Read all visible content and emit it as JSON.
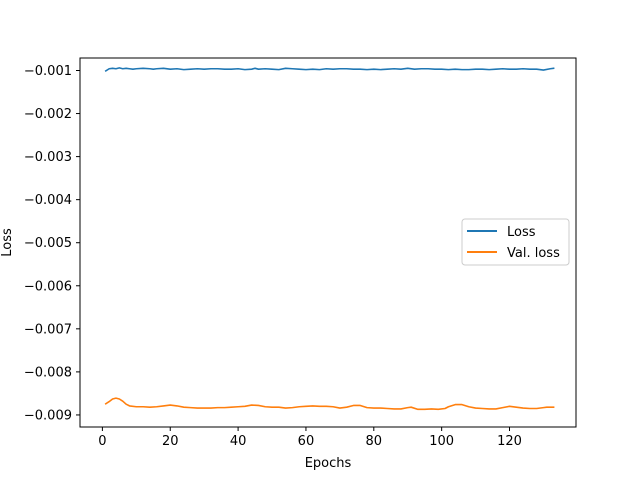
{
  "chart_data": {
    "type": "line",
    "xlabel": "Epochs",
    "ylabel": "Loss",
    "xlim": [
      -6.6,
      139.6
    ],
    "ylim": [
      -0.00928,
      -0.00071
    ],
    "xticks": [
      0,
      20,
      40,
      60,
      80,
      100,
      120
    ],
    "yticks": [
      -0.009,
      -0.008,
      -0.007,
      -0.006,
      -0.005,
      -0.004,
      -0.003,
      -0.002,
      -0.001
    ],
    "ytick_labels": [
      "−0.009",
      "−0.008",
      "−0.007",
      "−0.006",
      "−0.005",
      "−0.004",
      "−0.003",
      "−0.002",
      "−0.001"
    ],
    "grid": false,
    "legend_position": "center-right",
    "series": [
      {
        "name": "Loss",
        "color": "#1f77b4",
        "points": [
          [
            1,
            -0.00101
          ],
          [
            2,
            -0.00096
          ],
          [
            3,
            -0.00095
          ],
          [
            4,
            -0.00096
          ],
          [
            5,
            -0.00094
          ],
          [
            6,
            -0.00096
          ],
          [
            7,
            -0.00095
          ],
          [
            8,
            -0.00096
          ],
          [
            9,
            -0.00097
          ],
          [
            10,
            -0.00096
          ],
          [
            12,
            -0.00095
          ],
          [
            14,
            -0.00096
          ],
          [
            15,
            -0.00097
          ],
          [
            16,
            -0.00096
          ],
          [
            18,
            -0.00095
          ],
          [
            20,
            -0.00097
          ],
          [
            22,
            -0.00096
          ],
          [
            24,
            -0.00098
          ],
          [
            26,
            -0.00097
          ],
          [
            28,
            -0.00096
          ],
          [
            30,
            -0.00097
          ],
          [
            32,
            -0.00096
          ],
          [
            34,
            -0.00096
          ],
          [
            36,
            -0.00097
          ],
          [
            38,
            -0.00097
          ],
          [
            40,
            -0.00096
          ],
          [
            42,
            -0.00098
          ],
          [
            44,
            -0.00097
          ],
          [
            45,
            -0.00095
          ],
          [
            46,
            -0.00097
          ],
          [
            48,
            -0.00096
          ],
          [
            50,
            -0.00097
          ],
          [
            52,
            -0.00098
          ],
          [
            54,
            -0.00095
          ],
          [
            56,
            -0.00096
          ],
          [
            58,
            -0.00097
          ],
          [
            60,
            -0.00098
          ],
          [
            62,
            -0.00097
          ],
          [
            64,
            -0.00098
          ],
          [
            66,
            -0.00096
          ],
          [
            68,
            -0.00097
          ],
          [
            70,
            -0.00096
          ],
          [
            72,
            -0.00096
          ],
          [
            74,
            -0.00097
          ],
          [
            76,
            -0.00097
          ],
          [
            78,
            -0.00098
          ],
          [
            80,
            -0.00097
          ],
          [
            82,
            -0.00098
          ],
          [
            84,
            -0.00097
          ],
          [
            86,
            -0.00096
          ],
          [
            88,
            -0.00097
          ],
          [
            90,
            -0.00095
          ],
          [
            92,
            -0.00097
          ],
          [
            94,
            -0.00096
          ],
          [
            96,
            -0.00096
          ],
          [
            98,
            -0.00097
          ],
          [
            100,
            -0.00097
          ],
          [
            102,
            -0.00098
          ],
          [
            104,
            -0.00097
          ],
          [
            106,
            -0.00098
          ],
          [
            108,
            -0.00098
          ],
          [
            110,
            -0.00097
          ],
          [
            112,
            -0.00097
          ],
          [
            114,
            -0.00098
          ],
          [
            116,
            -0.00097
          ],
          [
            118,
            -0.00096
          ],
          [
            120,
            -0.00097
          ],
          [
            122,
            -0.00097
          ],
          [
            124,
            -0.00096
          ],
          [
            126,
            -0.00097
          ],
          [
            128,
            -0.00097
          ],
          [
            130,
            -0.00099
          ],
          [
            132,
            -0.00096
          ],
          [
            133,
            -0.00095
          ]
        ]
      },
      {
        "name": "Val. loss",
        "color": "#ff7f0e",
        "points": [
          [
            1,
            -0.00874
          ],
          [
            2,
            -0.00869
          ],
          [
            3,
            -0.00863
          ],
          [
            4,
            -0.00861
          ],
          [
            5,
            -0.00863
          ],
          [
            6,
            -0.00868
          ],
          [
            7,
            -0.00875
          ],
          [
            8,
            -0.00879
          ],
          [
            10,
            -0.00881
          ],
          [
            12,
            -0.00881
          ],
          [
            14,
            -0.00882
          ],
          [
            16,
            -0.00881
          ],
          [
            18,
            -0.00879
          ],
          [
            20,
            -0.00877
          ],
          [
            22,
            -0.00879
          ],
          [
            24,
            -0.00882
          ],
          [
            26,
            -0.00883
          ],
          [
            28,
            -0.00884
          ],
          [
            30,
            -0.00884
          ],
          [
            32,
            -0.00884
          ],
          [
            34,
            -0.00883
          ],
          [
            36,
            -0.00883
          ],
          [
            38,
            -0.00882
          ],
          [
            40,
            -0.00881
          ],
          [
            42,
            -0.0088
          ],
          [
            44,
            -0.00877
          ],
          [
            46,
            -0.00878
          ],
          [
            48,
            -0.00881
          ],
          [
            50,
            -0.00882
          ],
          [
            52,
            -0.00882
          ],
          [
            54,
            -0.00884
          ],
          [
            56,
            -0.00883
          ],
          [
            58,
            -0.00881
          ],
          [
            60,
            -0.0088
          ],
          [
            62,
            -0.00879
          ],
          [
            64,
            -0.0088
          ],
          [
            66,
            -0.0088
          ],
          [
            68,
            -0.00881
          ],
          [
            70,
            -0.00884
          ],
          [
            72,
            -0.00882
          ],
          [
            74,
            -0.00878
          ],
          [
            76,
            -0.00878
          ],
          [
            78,
            -0.00883
          ],
          [
            80,
            -0.00884
          ],
          [
            82,
            -0.00884
          ],
          [
            84,
            -0.00885
          ],
          [
            86,
            -0.00886
          ],
          [
            88,
            -0.00886
          ],
          [
            90,
            -0.00883
          ],
          [
            91,
            -0.00882
          ],
          [
            93,
            -0.00887
          ],
          [
            95,
            -0.00887
          ],
          [
            97,
            -0.00886
          ],
          [
            99,
            -0.00887
          ],
          [
            101,
            -0.00885
          ],
          [
            102,
            -0.00881
          ],
          [
            104,
            -0.00876
          ],
          [
            106,
            -0.00876
          ],
          [
            108,
            -0.00881
          ],
          [
            110,
            -0.00884
          ],
          [
            112,
            -0.00885
          ],
          [
            114,
            -0.00886
          ],
          [
            116,
            -0.00886
          ],
          [
            118,
            -0.00883
          ],
          [
            120,
            -0.0088
          ],
          [
            122,
            -0.00882
          ],
          [
            124,
            -0.00884
          ],
          [
            126,
            -0.00885
          ],
          [
            128,
            -0.00885
          ],
          [
            130,
            -0.00883
          ],
          [
            131,
            -0.00882
          ],
          [
            133,
            -0.00882
          ]
        ]
      }
    ]
  }
}
